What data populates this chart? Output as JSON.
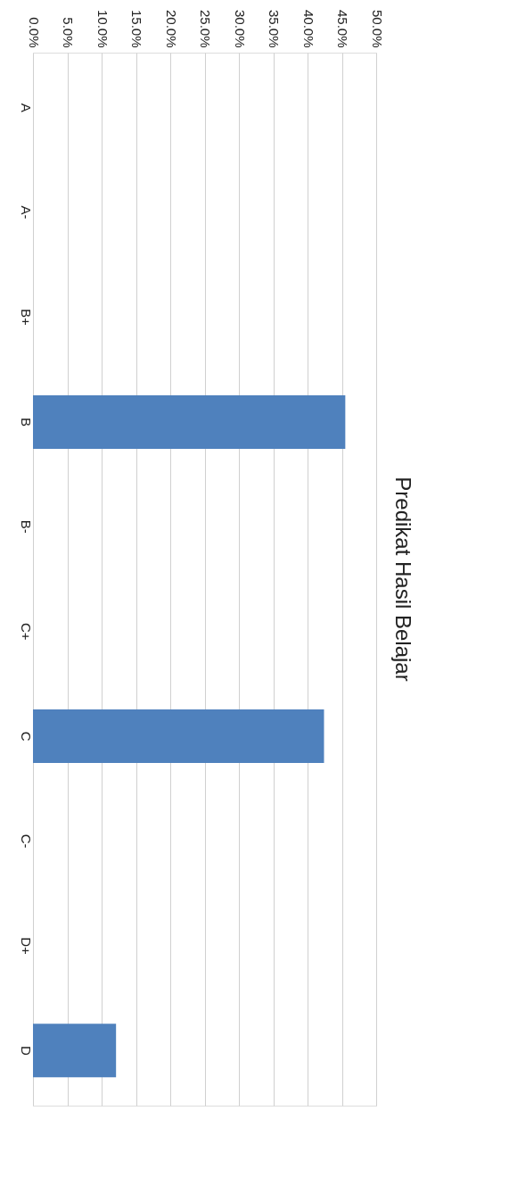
{
  "chart_data": {
    "type": "bar",
    "orientation": "horizontal",
    "title": "Predikat Hasil Belajar",
    "categories": [
      "A",
      "A-",
      "B+",
      "B",
      "B-",
      "C+",
      "C",
      "C-",
      "D+",
      "D"
    ],
    "values": [
      0,
      0,
      0,
      45.5,
      0,
      0,
      42.4,
      0,
      0,
      12.1
    ],
    "color": "#4f81bd",
    "xlim": [
      0,
      50
    ],
    "xticks": [
      {
        "value": 0,
        "label": "0.0%"
      },
      {
        "value": 5,
        "label": "5.0%"
      },
      {
        "value": 10,
        "label": "10.0%"
      },
      {
        "value": 15,
        "label": "15.0%"
      },
      {
        "value": 20,
        "label": "20.0%"
      },
      {
        "value": 25,
        "label": "25.0%"
      },
      {
        "value": 30,
        "label": "30.0%"
      },
      {
        "value": 35,
        "label": "35.0%"
      },
      {
        "value": 40,
        "label": "40.0%"
      },
      {
        "value": 45,
        "label": "45.0%"
      },
      {
        "value": 50,
        "label": "50.0%"
      }
    ],
    "grid": true
  }
}
